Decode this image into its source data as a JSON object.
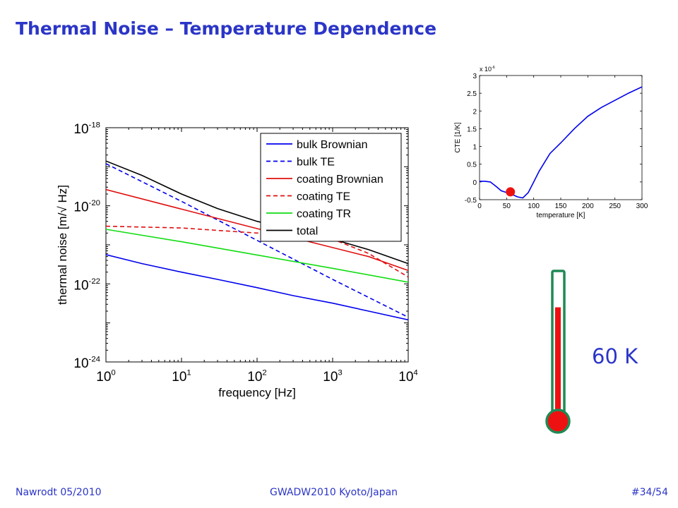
{
  "slide": {
    "title": "Thermal Noise – Temperature Dependence",
    "temperature_label": "60 K",
    "footer_left": "Nawrodt 05/2010",
    "footer_center": "GWADW2010 Kyoto/Japan",
    "footer_right": "#34/54"
  },
  "colors": {
    "title": "#2b35c7",
    "blue": "#0000ee",
    "red": "#e01010",
    "green": "#11dd11",
    "black": "#000000",
    "thermometer_outline": "#1f8a55",
    "mercury": "#ee1111"
  },
  "chart_data": [
    {
      "type": "line",
      "x_scale": "log",
      "y_scale": "log",
      "xlim": [
        1,
        10000
      ],
      "ylim": [
        1e-24,
        1e-18
      ],
      "xlabel": "frequency [Hz]",
      "ylabel": "thermal noise [m/√ Hz]",
      "x_ticks": [
        1,
        10,
        100,
        1000,
        10000
      ],
      "x_tick_labels": [
        {
          "base": "10",
          "exp": "0"
        },
        {
          "base": "10",
          "exp": "1"
        },
        {
          "base": "10",
          "exp": "2"
        },
        {
          "base": "10",
          "exp": "3"
        },
        {
          "base": "10",
          "exp": "4"
        }
      ],
      "y_ticks": [
        1e-18,
        1e-20,
        1e-22,
        1e-24
      ],
      "y_tick_labels": [
        {
          "base": "10",
          "exp": "-18"
        },
        {
          "base": "10",
          "exp": "-20"
        },
        {
          "base": "10",
          "exp": "-22"
        },
        {
          "base": "10",
          "exp": "-24"
        }
      ],
      "legend": "top-right",
      "series": [
        {
          "name": "bulk Brownian",
          "color": "#0000ee",
          "dash": false,
          "x": [
            1,
            3,
            10,
            30,
            100,
            300,
            1000,
            3000,
            10000
          ],
          "y": [
            5.6e-22,
            3.3e-22,
            2e-22,
            1.3e-22,
            8e-23,
            5e-23,
            3.2e-23,
            2e-23,
            1.2e-23
          ]
        },
        {
          "name": "bulk TE",
          "color": "#0000ee",
          "dash": true,
          "x": [
            1,
            10,
            100,
            1000,
            10000
          ],
          "y": [
            1.2e-19,
            1.3e-20,
            1.3e-21,
            1.3e-22,
            1.4e-23
          ]
        },
        {
          "name": "coating Brownian",
          "color": "#e01010",
          "dash": false,
          "x": [
            1,
            10,
            100,
            1000,
            3000,
            10000
          ],
          "y": [
            2.6e-20,
            8.2e-21,
            2.6e-21,
            8.5e-22,
            5e-22,
            2.2e-22
          ]
        },
        {
          "name": "coating TE",
          "color": "#e01010",
          "dash": true,
          "x": [
            1,
            10,
            100,
            300,
            1000,
            3000,
            10000
          ],
          "y": [
            3e-21,
            2.7e-21,
            2e-21,
            1.9e-21,
            1.4e-21,
            6e-22,
            1.5e-22
          ]
        },
        {
          "name": "coating TR",
          "color": "#11dd11",
          "dash": false,
          "x": [
            1,
            10,
            100,
            1000,
            10000
          ],
          "y": [
            2.5e-21,
            1.2e-21,
            5.5e-22,
            2.5e-22,
            1.1e-22
          ]
        },
        {
          "name": "total",
          "color": "#000000",
          "dash": false,
          "x": [
            1,
            3,
            10,
            30,
            100,
            300,
            1000,
            3000,
            10000
          ],
          "y": [
            1.4e-19,
            6e-20,
            2e-20,
            8.5e-21,
            4e-21,
            2.4e-21,
            1.4e-21,
            7.5e-22,
            3.3e-22
          ]
        }
      ]
    },
    {
      "type": "line",
      "xlabel": "temperature [K]",
      "ylabel": "CTE [1/K]",
      "multiplier": {
        "base": "x 10",
        "exp": "-6"
      },
      "xlim": [
        0,
        300
      ],
      "ylim": [
        -0.5,
        3
      ],
      "x_ticks": [
        0,
        50,
        100,
        150,
        200,
        250,
        300
      ],
      "x_tick_labels": [
        "0",
        "50",
        "100",
        "150",
        "200",
        "250",
        "300"
      ],
      "y_ticks": [
        -0.5,
        0,
        0.5,
        1,
        1.5,
        2,
        2.5,
        3
      ],
      "y_tick_labels": [
        "-0.5",
        "0",
        "0.5",
        "1",
        "1.5",
        "2",
        "2.5",
        "3"
      ],
      "series": [
        {
          "color": "#0000ee",
          "x": [
            0,
            10,
            20,
            30,
            40,
            50,
            60,
            70,
            80,
            90,
            100,
            110,
            120,
            130,
            150,
            175,
            200,
            225,
            250,
            275,
            300
          ],
          "y": [
            0.02,
            0.02,
            0.0,
            -0.12,
            -0.25,
            -0.3,
            -0.35,
            -0.42,
            -0.45,
            -0.3,
            0.0,
            0.3,
            0.55,
            0.8,
            1.1,
            1.5,
            1.85,
            2.1,
            2.3,
            2.5,
            2.68
          ]
        }
      ],
      "highlight_point": {
        "x": 57,
        "y": -0.28,
        "color": "#ee1111"
      }
    }
  ],
  "thermometer": {
    "level": 0.78
  }
}
